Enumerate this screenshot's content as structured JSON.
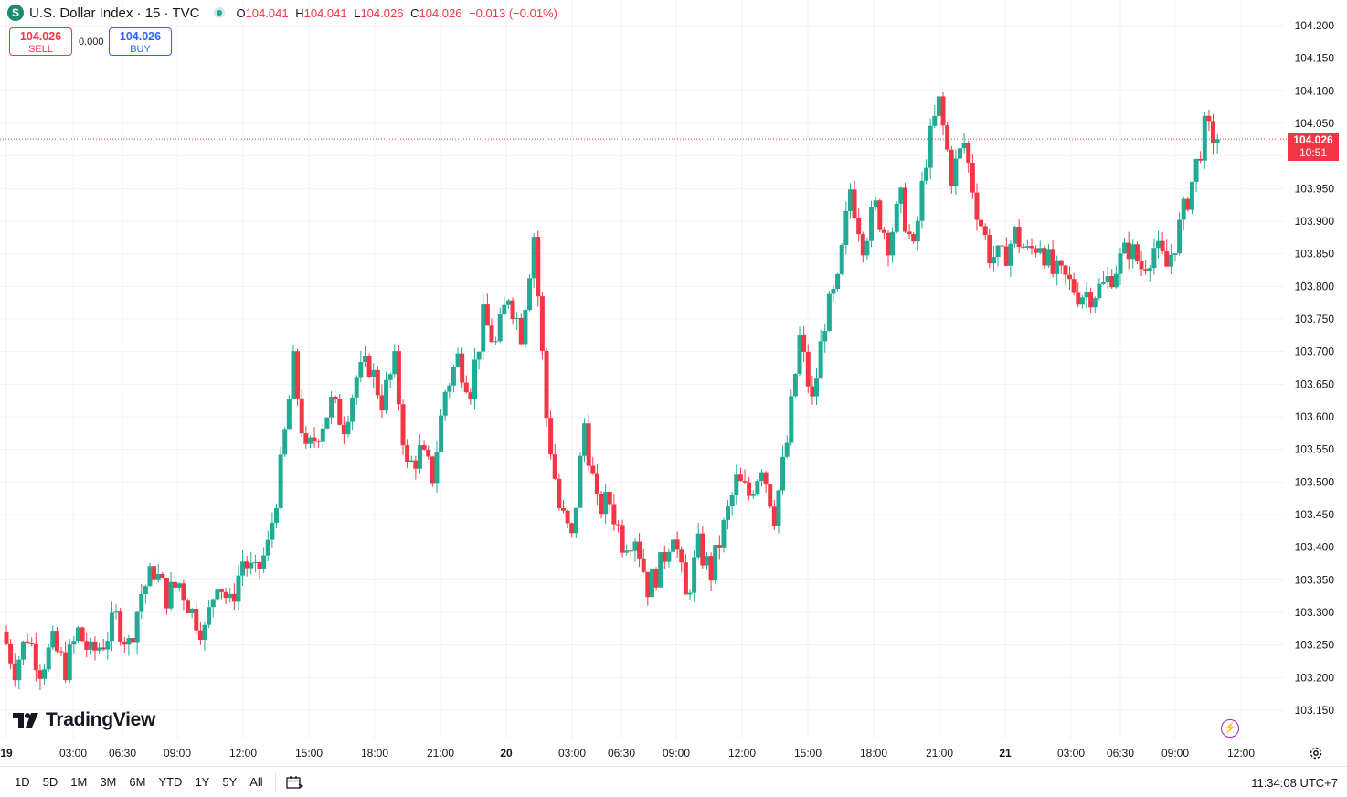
{
  "header": {
    "symbol_letter": "S",
    "title": "U.S. Dollar Index · 15 · TVC",
    "open_label": "O",
    "open": "104.041",
    "high_label": "H",
    "high": "104.041",
    "low_label": "L",
    "low": "104.026",
    "close_label": "C",
    "close": "104.026",
    "change": "−0.013 (−0.01%)"
  },
  "trade": {
    "sell_price": "104.026",
    "sell_label": "SELL",
    "spread": "0.000",
    "buy_price": "104.026",
    "buy_label": "BUY"
  },
  "price_badge": {
    "price": "104.026",
    "countdown": "10:51"
  },
  "logo": "TradingView",
  "bottom_bar": {
    "ranges": [
      "1D",
      "5D",
      "1M",
      "3M",
      "6M",
      "YTD",
      "1Y",
      "5Y",
      "All"
    ],
    "clock": "11:34:08 UTC+7"
  },
  "colors": {
    "up": "#22ab94",
    "down": "#f23645",
    "grid": "#f0f3fa",
    "text": "#131722"
  },
  "chart_data": {
    "type": "candlestick",
    "y_ticks": [
      "104.200",
      "104.150",
      "104.100",
      "104.050",
      "104.000",
      "103.950",
      "103.900",
      "103.850",
      "103.800",
      "103.750",
      "103.700",
      "103.650",
      "103.600",
      "103.550",
      "103.500",
      "103.450",
      "103.400",
      "103.350",
      "103.300",
      "103.250",
      "103.200",
      "103.150"
    ],
    "ylim": [
      103.125,
      104.225
    ],
    "x_ticks": [
      "19",
      "03:00",
      "06:30",
      "09:00",
      "12:00",
      "15:00",
      "18:00",
      "21:00",
      "20",
      "03:00",
      "06:30",
      "09:00",
      "12:00",
      "15:00",
      "18:00",
      "21:00",
      "21",
      "03:00",
      "06:30",
      "09:00",
      "12:00"
    ],
    "last_price": 104.026,
    "path": [
      103.27,
      103.215,
      103.265,
      103.215,
      103.25,
      103.215,
      103.27,
      103.235,
      103.255,
      103.29,
      103.25,
      103.33,
      103.365,
      103.325,
      103.345,
      103.3,
      103.27,
      103.355,
      103.31,
      103.38,
      103.355,
      103.4,
      103.52,
      103.68,
      103.54,
      103.58,
      103.62,
      103.59,
      103.66,
      103.68,
      103.625,
      103.68,
      103.52,
      103.545,
      103.51,
      103.64,
      103.69,
      103.645,
      103.75,
      103.71,
      103.79,
      103.73,
      103.88,
      103.6,
      103.46,
      103.41,
      103.59,
      103.46,
      103.47,
      103.41,
      103.42,
      103.34,
      103.37,
      103.43,
      103.32,
      103.4,
      103.36,
      103.43,
      103.5,
      103.48,
      103.53,
      103.45,
      103.56,
      103.72,
      103.62,
      103.75,
      103.8,
      103.95,
      103.87,
      103.92,
      103.87,
      103.93,
      103.85,
      104.0,
      104.08,
      103.97,
      104.02,
      103.92,
      103.85,
      103.84,
      103.88,
      103.85,
      103.87,
      103.82,
      103.81,
      103.79,
      103.79,
      103.8,
      103.83,
      103.86,
      103.83,
      103.86,
      103.83,
      103.89,
      103.96,
      104.04,
      104.026
    ],
    "segment_candles": [
      3,
      3,
      3,
      3,
      3,
      3,
      3,
      3,
      3,
      3,
      3,
      3,
      3,
      3,
      3,
      3,
      3,
      3,
      3,
      3,
      3,
      3,
      3,
      3,
      3,
      3,
      3,
      3,
      3,
      3,
      3,
      3,
      3,
      3,
      3,
      3,
      3,
      3,
      3,
      3,
      3,
      3,
      3,
      3,
      3,
      3,
      3,
      3,
      3,
      3,
      3,
      3,
      3,
      3,
      3,
      3,
      3,
      3,
      3,
      3,
      3,
      3,
      3,
      3,
      3,
      3,
      3,
      3,
      3,
      3,
      3,
      3,
      3,
      3,
      3,
      3,
      3,
      3,
      3,
      3,
      3,
      3,
      3,
      3,
      3,
      3,
      3,
      3,
      3,
      3,
      3,
      3,
      3,
      3,
      3,
      3,
      3
    ]
  }
}
